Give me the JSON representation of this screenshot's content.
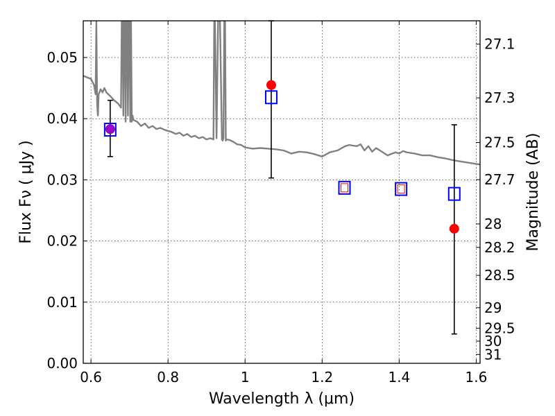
{
  "chart_data": {
    "type": "scatter",
    "xlabel": "Wavelength  λ (μm)",
    "ylabel": "Flux  Fν  ( μJy )",
    "y2label": "Magnitude (AB)",
    "xlim": [
      0.58,
      1.61
    ],
    "ylim": [
      0.0,
      0.056
    ],
    "grid": true,
    "x_ticks": [
      0.6,
      0.8,
      1.0,
      1.2,
      1.4,
      1.6
    ],
    "x_tick_labels": [
      "0.6",
      "0.8",
      "1",
      "1.2",
      "1.4",
      "1.6"
    ],
    "y_ticks": [
      0.0,
      0.01,
      0.02,
      0.03,
      0.04,
      0.05
    ],
    "y_tick_labels": [
      "0.00",
      "0.01",
      "0.02",
      "0.03",
      "0.04",
      "0.05"
    ],
    "mag_ticks": [
      {
        "label": "27.1",
        "flux": 0.05218
      },
      {
        "label": "27.3",
        "flux": 0.0434
      },
      {
        "label": "27.5",
        "flux": 0.0361
      },
      {
        "label": "27.7",
        "flux": 0.03003
      },
      {
        "label": "28",
        "flux": 0.02279
      },
      {
        "label": "28.2",
        "flux": 0.01895
      },
      {
        "label": "28.5",
        "flux": 0.01438
      },
      {
        "label": "29",
        "flux": 0.00909
      },
      {
        "label": "29.5",
        "flux": 0.00574
      },
      {
        "label": "30",
        "flux": 0.00363
      },
      {
        "label": "31",
        "flux": 0.00144
      }
    ],
    "series": [
      {
        "kind": "model-spectrum",
        "color": "#808080",
        "x": [
          0.58,
          0.6,
          0.608,
          0.612,
          0.614,
          0.616,
          0.618,
          0.62,
          0.625,
          0.63,
          0.635,
          0.64,
          0.65,
          0.66,
          0.67,
          0.678,
          0.68,
          0.682,
          0.684,
          0.686,
          0.688,
          0.69,
          0.692,
          0.694,
          0.696,
          0.698,
          0.7,
          0.702,
          0.704,
          0.706,
          0.708,
          0.71,
          0.72,
          0.73,
          0.74,
          0.75,
          0.76,
          0.77,
          0.78,
          0.79,
          0.8,
          0.81,
          0.82,
          0.83,
          0.84,
          0.85,
          0.86,
          0.87,
          0.88,
          0.89,
          0.9,
          0.91,
          0.918,
          0.92,
          0.922,
          0.926,
          0.93,
          0.935,
          0.94,
          0.942,
          0.944,
          0.946,
          0.948,
          0.95,
          0.952,
          0.96,
          0.97,
          0.98,
          0.99,
          1.0,
          1.02,
          1.04,
          1.06,
          1.08,
          1.1,
          1.12,
          1.14,
          1.16,
          1.18,
          1.2,
          1.22,
          1.24,
          1.26,
          1.27,
          1.28,
          1.29,
          1.3,
          1.31,
          1.32,
          1.33,
          1.34,
          1.35,
          1.37,
          1.39,
          1.4,
          1.41,
          1.42,
          1.44,
          1.46,
          1.48,
          1.5,
          1.52,
          1.54,
          1.56,
          1.58,
          1.61
        ],
        "y": [
          0.047,
          0.0465,
          0.0455,
          0.044,
          0.056,
          0.0425,
          0.0405,
          0.044,
          0.0448,
          0.0443,
          0.045,
          0.0443,
          0.0437,
          0.043,
          0.0425,
          0.0418,
          0.056,
          0.056,
          0.0405,
          0.056,
          0.056,
          0.0395,
          0.056,
          0.056,
          0.0405,
          0.056,
          0.056,
          0.0395,
          0.056,
          0.0395,
          0.0405,
          0.0398,
          0.0395,
          0.0388,
          0.0392,
          0.0385,
          0.0388,
          0.0383,
          0.0385,
          0.0382,
          0.038,
          0.0378,
          0.0375,
          0.0377,
          0.0372,
          0.0375,
          0.037,
          0.0372,
          0.0368,
          0.037,
          0.0366,
          0.0368,
          0.0366,
          0.056,
          0.056,
          0.0368,
          0.056,
          0.056,
          0.0366,
          0.0364,
          0.0368,
          0.056,
          0.056,
          0.0364,
          0.0366,
          0.0365,
          0.0362,
          0.0358,
          0.0357,
          0.0353,
          0.0351,
          0.0352,
          0.0351,
          0.035,
          0.0348,
          0.0343,
          0.0346,
          0.0345,
          0.0342,
          0.0338,
          0.0345,
          0.0348,
          0.0355,
          0.0357,
          0.0356,
          0.0355,
          0.0358,
          0.0348,
          0.0355,
          0.0346,
          0.0352,
          0.0348,
          0.034,
          0.0345,
          0.0343,
          0.0347,
          0.0345,
          0.0343,
          0.034,
          0.034,
          0.0337,
          0.0335,
          0.0332,
          0.033,
          0.0328,
          0.0325
        ]
      },
      {
        "kind": "measurements",
        "marker": "circle",
        "color": "#ff0000",
        "x": [
          0.65,
          1.068,
          1.543
        ],
        "y": [
          0.0383,
          0.0455,
          0.022
        ],
        "err_low": [
          0.0338,
          0.0303,
          0.0048
        ],
        "err_high": [
          0.043,
          0.056,
          0.039
        ]
      },
      {
        "kind": "model-photometry",
        "marker": "open-square",
        "color": "#0000ff",
        "x": [
          0.65,
          1.068,
          1.258,
          1.405,
          1.543
        ],
        "y": [
          0.0382,
          0.0435,
          0.0287,
          0.0285,
          0.0277
        ]
      },
      {
        "kind": "model-photometry-inner",
        "marker": "small-open-square",
        "color": "#ff0000",
        "x": [
          1.258,
          1.405
        ],
        "y": [
          0.0287,
          0.0285
        ]
      }
    ],
    "overlap_color": "#9900cc"
  }
}
